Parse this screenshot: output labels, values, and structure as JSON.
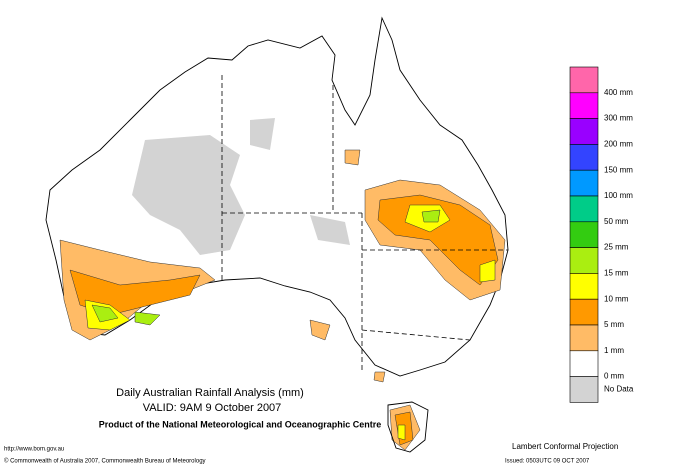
{
  "header": {
    "title": "Daily Australian Rainfall Analysis (mm)",
    "valid": "VALID: 9AM  9 October 2007",
    "product": "Product of the National Meteorological and Oceanographic Centre"
  },
  "footer": {
    "url": "http://www.bom.gov.au",
    "copyright": "© Commonwealth of Australia 2007, Commonwealth Bureau of Meteorology",
    "projection": "Lambert Conformal Projection",
    "issued": "Issued: 0503UTC 09 OCT 2007"
  },
  "legend": {
    "colors": [
      "#ff66aa",
      "#ff00ff",
      "#9900ff",
      "#3344ff",
      "#0099ff",
      "#00cc88",
      "#33cc11",
      "#aaee11",
      "#ffff00",
      "#ff9900",
      "#ffbb66",
      "#ffffff",
      "#d3d3d3"
    ],
    "labels": [
      "400 mm",
      "300 mm",
      "200 mm",
      "150 mm",
      "100 mm",
      "50 mm",
      "25 mm",
      "15 mm",
      "10 mm",
      "5 mm",
      "1 mm",
      "0 mm",
      "No Data"
    ]
  }
}
